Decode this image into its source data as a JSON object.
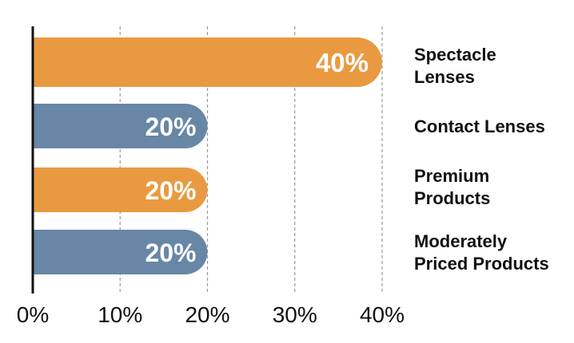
{
  "chart_data": {
    "type": "bar",
    "orientation": "horizontal",
    "categories": [
      "Spectacle Lenses",
      "Contact Lenses",
      "Premium Products",
      "Moderately Priced Products"
    ],
    "category_display": [
      "Spectacle\nLenses",
      "Contact Lenses",
      "Premium\nProducts",
      "Moderately\nPriced Products"
    ],
    "values": [
      40,
      20,
      20,
      20
    ],
    "value_labels": [
      "40%",
      "20%",
      "20%",
      "20%"
    ],
    "bar_colors": [
      "#e99a41",
      "#6886a6",
      "#e99a41",
      "#6886a6"
    ],
    "xlim": [
      0,
      40
    ],
    "x_ticks": [
      0,
      10,
      20,
      30,
      40
    ],
    "x_tick_labels": [
      "0%",
      "10%",
      "20%",
      "30%",
      "40%"
    ],
    "grid": "vertical dashed",
    "legend": "none"
  }
}
